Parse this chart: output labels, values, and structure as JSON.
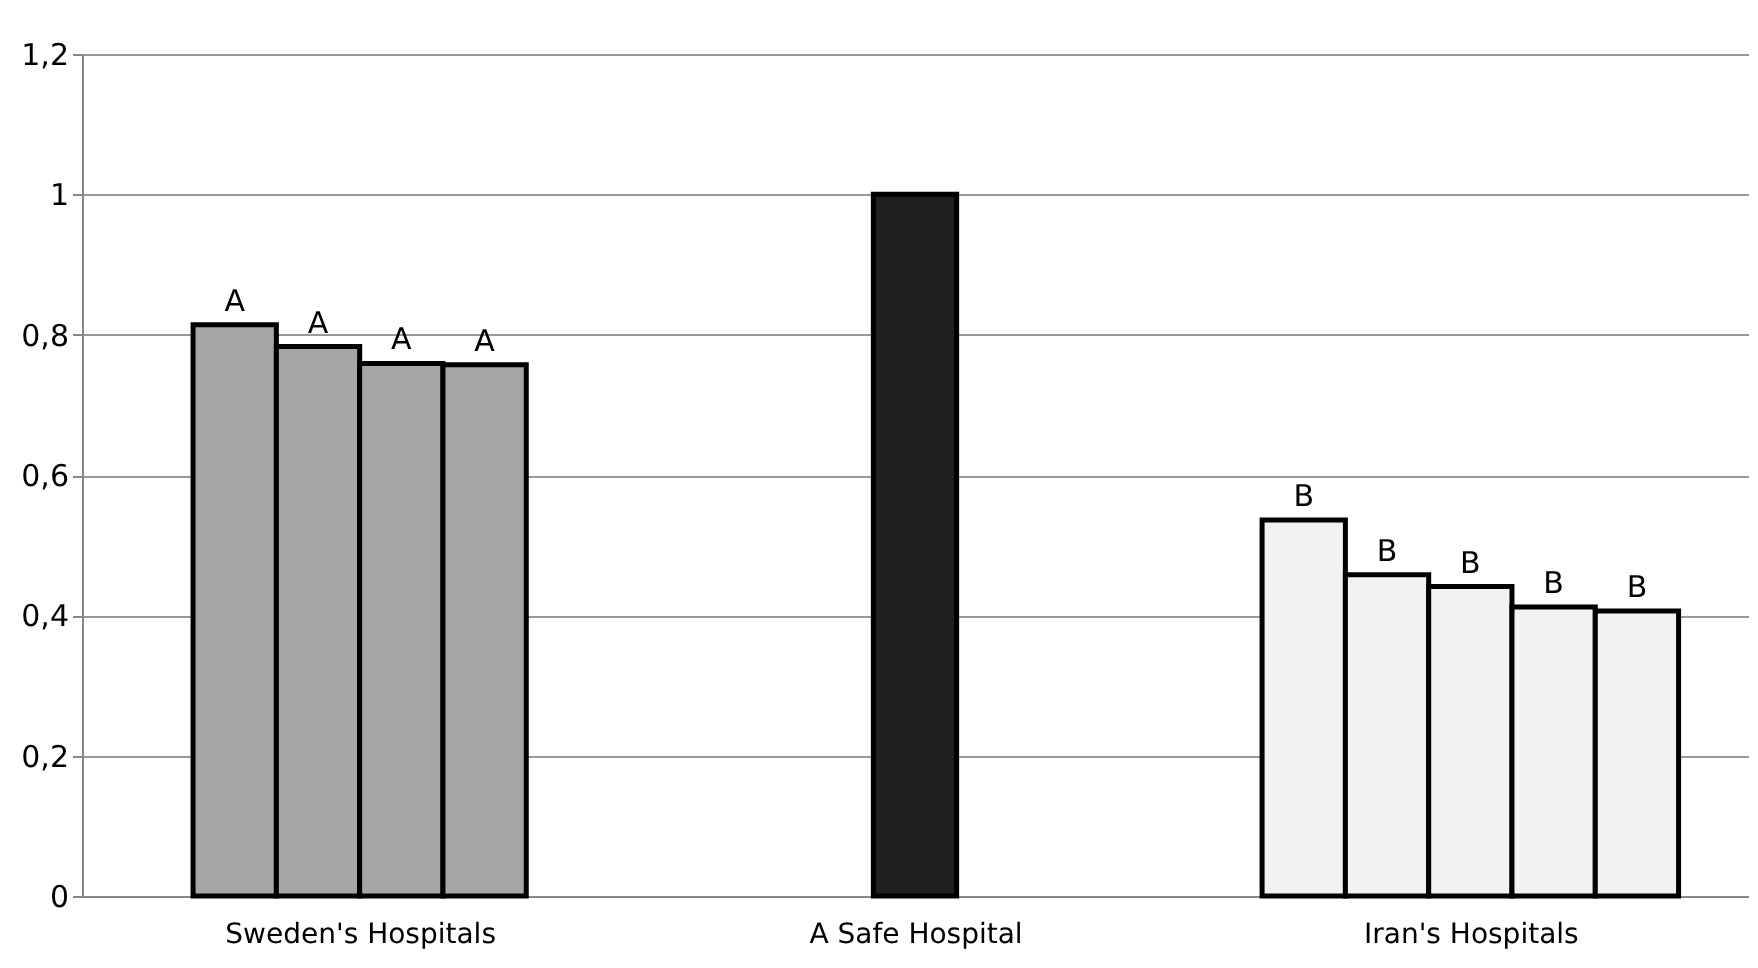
{
  "chart_data": {
    "type": "bar",
    "categories": [
      "Sweden's Hospitals",
      "A Safe Hospital",
      "Iran's Hospitals"
    ],
    "series": [
      {
        "colors": [
          "#a6a6a6",
          "#1f1f1f",
          "#f2f2f2"
        ],
        "values": [
          0.814,
          1.0,
          0.536
        ],
        "value_labels": [
          "A",
          null,
          "B"
        ]
      },
      {
        "colors": [
          "#a6a6a6",
          null,
          "#f2f2f2"
        ],
        "values": [
          0.783,
          null,
          0.458
        ],
        "value_labels": [
          "A",
          null,
          "B"
        ]
      },
      {
        "colors": [
          "#a6a6a6",
          null,
          "#f2f2f2"
        ],
        "values": [
          0.759,
          null,
          0.441
        ],
        "value_labels": [
          "A",
          null,
          "B"
        ]
      },
      {
        "colors": [
          "#a6a6a6",
          null,
          "#f2f2f2"
        ],
        "values": [
          0.757,
          null,
          0.412
        ],
        "value_labels": [
          "A",
          null,
          "B"
        ]
      },
      {
        "colors": [
          null,
          null,
          "#f2f2f2"
        ],
        "values": [
          null,
          null,
          0.406
        ],
        "value_labels": [
          null,
          null,
          "B"
        ]
      }
    ],
    "ylim": [
      0,
      1.2
    ],
    "yticks": [
      0,
      {
        "value": 0.2,
        "label": "0,2"
      },
      {
        "value": 0.4,
        "label": "0,4"
      },
      {
        "value": 0.6,
        "label": "0,6"
      },
      {
        "value": 0.8,
        "label": "0,8"
      },
      1,
      {
        "value": 1.2,
        "label": "1,2"
      }
    ],
    "grid": "y"
  }
}
